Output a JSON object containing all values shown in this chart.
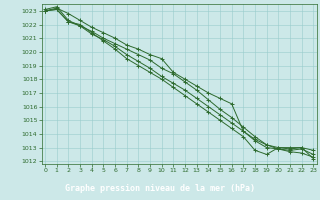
{
  "title": "Graphe pression niveau de la mer (hPa)",
  "bg_color": "#cce8e8",
  "plot_bg_color": "#cce8e8",
  "grid_color": "#99cccc",
  "line_color": "#2d6a2d",
  "title_bg": "#2d6a2d",
  "title_fg": "#ffffff",
  "xlim": [
    -0.3,
    23.3
  ],
  "ylim": [
    1011.8,
    1023.5
  ],
  "xticks": [
    0,
    1,
    2,
    3,
    4,
    5,
    6,
    7,
    8,
    9,
    10,
    11,
    12,
    13,
    14,
    15,
    16,
    17,
    18,
    19,
    20,
    21,
    22,
    23
  ],
  "yticks": [
    1012,
    1013,
    1014,
    1015,
    1016,
    1017,
    1018,
    1019,
    1020,
    1021,
    1022,
    1023
  ],
  "series": [
    [
      1023.0,
      1023.2,
      1022.8,
      1022.3,
      1021.8,
      1021.4,
      1021.0,
      1020.5,
      1020.2,
      1019.8,
      1019.5,
      1018.5,
      1018.0,
      1017.5,
      1017.0,
      1016.6,
      1016.2,
      1014.2,
      1013.5,
      1013.0,
      1012.9,
      1012.8,
      1012.9,
      1012.5
    ],
    [
      1023.1,
      1023.3,
      1022.3,
      1021.9,
      1021.5,
      1021.0,
      1020.6,
      1020.2,
      1019.8,
      1019.4,
      1018.8,
      1018.4,
      1017.8,
      1017.2,
      1016.5,
      1015.8,
      1015.2,
      1014.5,
      1013.8,
      1013.2,
      1012.9,
      1012.7,
      1012.6,
      1012.3
    ],
    [
      1023.0,
      1023.1,
      1022.2,
      1021.9,
      1021.3,
      1020.9,
      1020.4,
      1019.8,
      1019.3,
      1018.8,
      1018.2,
      1017.7,
      1017.2,
      1016.6,
      1016.0,
      1015.4,
      1014.8,
      1014.2,
      1013.6,
      1013.2,
      1013.0,
      1013.0,
      1013.0,
      1012.8
    ],
    [
      1023.0,
      1023.1,
      1022.2,
      1022.0,
      1021.4,
      1020.8,
      1020.2,
      1019.5,
      1019.0,
      1018.5,
      1018.0,
      1017.4,
      1016.8,
      1016.2,
      1015.6,
      1015.0,
      1014.4,
      1013.8,
      1012.8,
      1012.5,
      1013.0,
      1012.9,
      1013.0,
      1012.2
    ]
  ]
}
